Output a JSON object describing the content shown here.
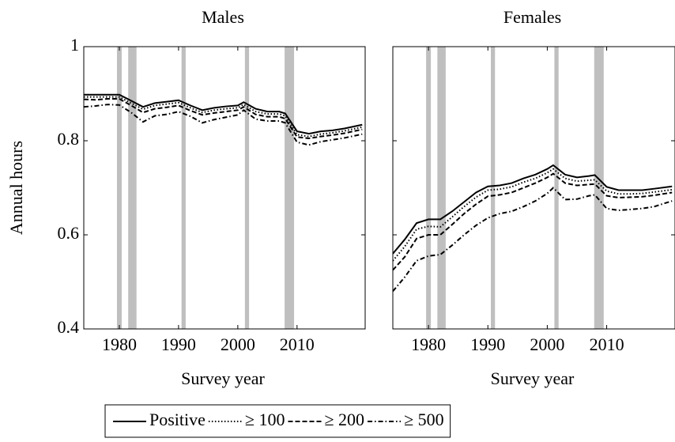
{
  "chart_data": [
    {
      "type": "line",
      "title": "Males",
      "y_label": "Annual hours",
      "x_label": "Survey year",
      "xlim": [
        1974,
        2021.5
      ],
      "xticks": [
        1980,
        1990,
        2000,
        2010
      ],
      "ylim": [
        0.4,
        1
      ],
      "yticks": [
        0.4,
        0.6,
        0.8,
        1
      ],
      "recession_color": "#bfbfbf",
      "recessions": [
        [
          1979.6,
          1980.4
        ],
        [
          1981.5,
          1982.9
        ],
        [
          1990.5,
          1991.2
        ],
        [
          2001.2,
          2001.9
        ],
        [
          2007.9,
          2009.5
        ]
      ],
      "x": [
        1974,
        1976,
        1978,
        1980,
        1982,
        1984,
        1986,
        1988,
        1990,
        1992,
        1994,
        1996,
        1998,
        2000,
        2001,
        2003,
        2005,
        2007,
        2008,
        2010,
        2012,
        2014,
        2016,
        2018,
        2021
      ],
      "series": [
        {
          "name": "Positive",
          "color": "#000000",
          "dash": "solid",
          "values": [
            0.898,
            0.898,
            0.898,
            0.898,
            0.885,
            0.872,
            0.88,
            0.883,
            0.886,
            0.875,
            0.865,
            0.87,
            0.873,
            0.875,
            0.882,
            0.868,
            0.862,
            0.862,
            0.858,
            0.82,
            0.815,
            0.82,
            0.822,
            0.826,
            0.834
          ]
        },
        {
          "name": "≥ 100",
          "color": "#000000",
          "dash": "dotted",
          "values": [
            0.893,
            0.893,
            0.893,
            0.893,
            0.88,
            0.867,
            0.875,
            0.878,
            0.881,
            0.87,
            0.86,
            0.865,
            0.868,
            0.87,
            0.877,
            0.862,
            0.857,
            0.857,
            0.853,
            0.813,
            0.809,
            0.814,
            0.817,
            0.821,
            0.829
          ]
        },
        {
          "name": "≥ 200",
          "color": "#000000",
          "dash": "dashed",
          "values": [
            0.888,
            0.887,
            0.889,
            0.889,
            0.875,
            0.86,
            0.868,
            0.871,
            0.875,
            0.864,
            0.855,
            0.859,
            0.862,
            0.865,
            0.872,
            0.856,
            0.851,
            0.851,
            0.847,
            0.808,
            0.805,
            0.809,
            0.812,
            0.816,
            0.824
          ]
        },
        {
          "name": "≥ 500",
          "color": "#000000",
          "dash": "dashdot",
          "values": [
            0.872,
            0.874,
            0.877,
            0.876,
            0.86,
            0.84,
            0.853,
            0.856,
            0.862,
            0.852,
            0.838,
            0.845,
            0.85,
            0.855,
            0.865,
            0.846,
            0.842,
            0.842,
            0.838,
            0.797,
            0.791,
            0.798,
            0.802,
            0.806,
            0.814
          ]
        }
      ]
    },
    {
      "type": "line",
      "title": "Females",
      "x_label": "Survey year",
      "xlim": [
        1974,
        2021.5
      ],
      "xticks": [
        1980,
        1990,
        2000,
        2010
      ],
      "ylim": [
        0.4,
        1
      ],
      "yticks": [
        0.4,
        0.6,
        0.8,
        1
      ],
      "recession_color": "#bfbfbf",
      "recessions": [
        [
          1979.6,
          1980.4
        ],
        [
          1981.5,
          1982.9
        ],
        [
          1990.5,
          1991.2
        ],
        [
          2001.2,
          2001.9
        ],
        [
          2007.9,
          2009.5
        ]
      ],
      "x": [
        1974,
        1976,
        1978,
        1980,
        1982,
        1984,
        1986,
        1988,
        1990,
        1992,
        1994,
        1996,
        1998,
        2000,
        2001,
        2003,
        2005,
        2007,
        2008,
        2010,
        2012,
        2014,
        2016,
        2018,
        2021
      ],
      "series": [
        {
          "color": "#000000",
          "dash": "solid",
          "values": [
            0.56,
            0.59,
            0.625,
            0.633,
            0.633,
            0.65,
            0.67,
            0.69,
            0.703,
            0.705,
            0.71,
            0.72,
            0.728,
            0.74,
            0.748,
            0.728,
            0.722,
            0.725,
            0.727,
            0.702,
            0.695,
            0.695,
            0.695,
            0.698,
            0.703
          ]
        },
        {
          "color": "#000000",
          "dash": "dotted",
          "values": [
            0.545,
            0.575,
            0.612,
            0.618,
            0.617,
            0.638,
            0.66,
            0.68,
            0.695,
            0.697,
            0.702,
            0.712,
            0.72,
            0.732,
            0.74,
            0.72,
            0.714,
            0.716,
            0.717,
            0.693,
            0.687,
            0.687,
            0.688,
            0.691,
            0.696
          ]
        },
        {
          "color": "#000000",
          "dash": "dashed",
          "values": [
            0.525,
            0.553,
            0.592,
            0.6,
            0.6,
            0.622,
            0.645,
            0.665,
            0.682,
            0.685,
            0.69,
            0.7,
            0.71,
            0.722,
            0.73,
            0.71,
            0.705,
            0.707,
            0.708,
            0.683,
            0.679,
            0.68,
            0.681,
            0.684,
            0.69
          ]
        },
        {
          "color": "#000000",
          "dash": "dashdot",
          "values": [
            0.48,
            0.51,
            0.545,
            0.555,
            0.558,
            0.578,
            0.6,
            0.62,
            0.636,
            0.645,
            0.65,
            0.66,
            0.672,
            0.688,
            0.7,
            0.675,
            0.676,
            0.683,
            0.685,
            0.656,
            0.652,
            0.654,
            0.656,
            0.66,
            0.672
          ]
        }
      ]
    }
  ]
}
